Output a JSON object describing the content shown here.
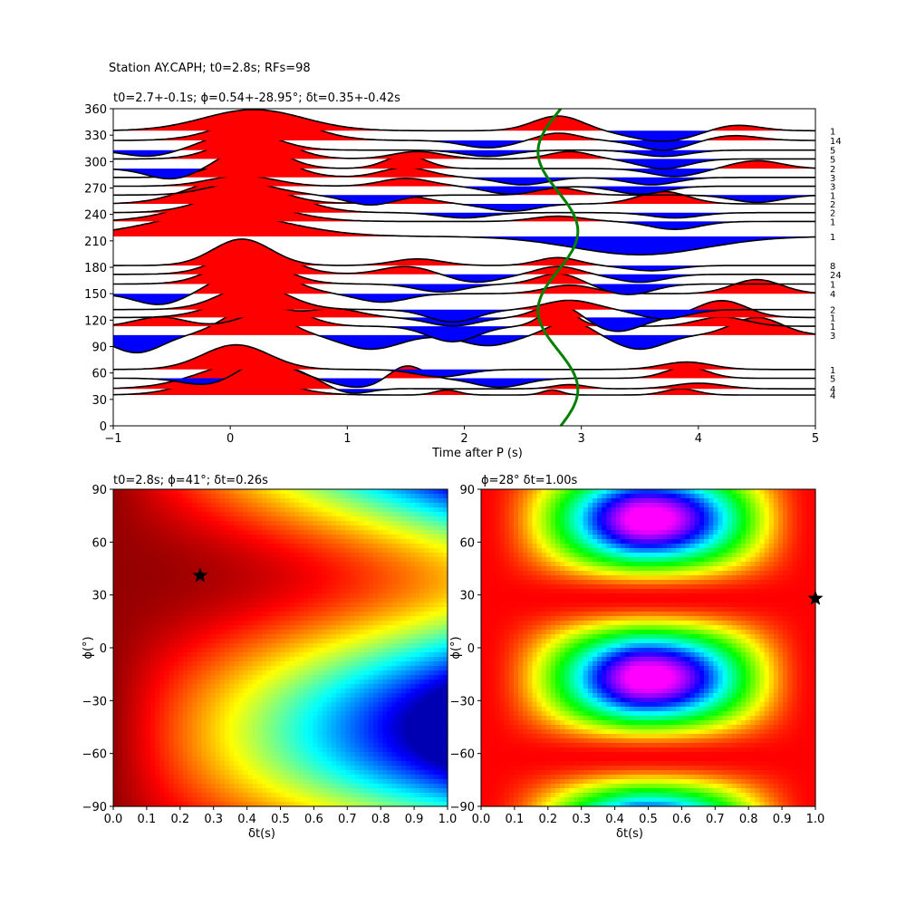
{
  "figure_title": "Station AY.CAPH; t0=2.8s; RFs=98",
  "chart_data": [
    {
      "type": "line",
      "title": "t0=2.7+-0.1s; ϕ=0.54+-28.95°; δt=0.35+-0.42s",
      "xlabel": "Time after P (s)",
      "ylabel": "",
      "xlim": [
        -1,
        5
      ],
      "ylim": [
        0,
        360
      ],
      "x_ticks": [
        "−1",
        "0",
        "1",
        "2",
        "3",
        "4",
        "5"
      ],
      "y_ticks": [
        "0",
        "30",
        "60",
        "90",
        "120",
        "150",
        "180",
        "210",
        "240",
        "270",
        "300",
        "330",
        "360"
      ],
      "positive_fill_color": "#ff0000",
      "negative_fill_color": "#0000ff",
      "curve_color": "#008000",
      "traces": [
        {
          "baz": 35,
          "count": "4",
          "amp": 28,
          "g": [
            [
              0.05,
              0.9,
              0.5
            ],
            [
              1.85,
              0.2,
              0.15
            ],
            [
              2.75,
              0.2,
              0.12
            ],
            [
              3.85,
              0.25,
              0.2
            ]
          ]
        },
        {
          "baz": 42,
          "count": "4",
          "amp": 32,
          "g": [
            [
              0.2,
              1.0,
              0.6
            ],
            [
              1.0,
              -0.3,
              0.25
            ],
            [
              2.9,
              0.15,
              0.2
            ],
            [
              4.0,
              0.2,
              0.3
            ]
          ]
        },
        {
          "baz": 54,
          "count": "5",
          "amp": 26,
          "g": [
            [
              -0.2,
              -0.3,
              0.3
            ],
            [
              0.3,
              0.8,
              0.3
            ],
            [
              1.1,
              -0.4,
              0.3
            ],
            [
              1.5,
              0.6,
              0.2
            ],
            [
              2.3,
              -0.4,
              0.3
            ],
            [
              3.9,
              0.5,
              0.25
            ]
          ]
        },
        {
          "baz": 64,
          "count": "1",
          "amp": 28,
          "g": [
            [
              0.05,
              1.0,
              0.4
            ],
            [
              1.8,
              -0.3,
              0.3
            ],
            [
              3.9,
              0.3,
              0.3
            ]
          ]
        },
        {
          "baz": 103,
          "count": "3",
          "amp": 40,
          "g": [
            [
              -0.8,
              -0.5,
              0.3
            ],
            [
              0.2,
              0.8,
              0.35
            ],
            [
              1.2,
              -0.4,
              0.35
            ],
            [
              2.2,
              -0.3,
              0.3
            ],
            [
              2.9,
              0.4,
              0.25
            ],
            [
              3.5,
              -0.4,
              0.3
            ],
            [
              4.5,
              0.5,
              0.3
            ]
          ]
        },
        {
          "baz": 113,
          "count": "1",
          "amp": 35,
          "g": [
            [
              -0.6,
              0.3,
              0.3
            ],
            [
              0.4,
              0.6,
              0.35
            ],
            [
              1.9,
              -0.5,
              0.3
            ],
            [
              2.8,
              0.6,
              0.2
            ],
            [
              4.2,
              0.3,
              0.3
            ]
          ]
        },
        {
          "baz": 123,
          "count": "1",
          "amp": 32,
          "g": [
            [
              0.1,
              0.6,
              0.4
            ],
            [
              0.9,
              0.3,
              0.3
            ],
            [
              1.9,
              -0.3,
              0.3
            ],
            [
              2.8,
              0.5,
              0.25
            ],
            [
              3.3,
              -0.5,
              0.3
            ],
            [
              4.2,
              0.6,
              0.3
            ]
          ]
        },
        {
          "baz": 132,
          "count": "2",
          "amp": 35,
          "g": [
            [
              0.2,
              0.8,
              0.4
            ],
            [
              1.9,
              -0.4,
              0.3
            ],
            [
              2.9,
              0.3,
              0.3
            ],
            [
              3.7,
              -0.3,
              0.3
            ]
          ]
        },
        {
          "baz": 150,
          "count": "4",
          "amp": 32,
          "g": [
            [
              -0.6,
              -0.4,
              0.3
            ],
            [
              0.2,
              1.0,
              0.4
            ],
            [
              1.3,
              -0.3,
              0.3
            ],
            [
              2.9,
              0.3,
              0.3
            ],
            [
              4.5,
              0.5,
              0.3
            ]
          ]
        },
        {
          "baz": 161,
          "count": "1",
          "amp": 30,
          "g": [
            [
              0.15,
              1.0,
              0.4
            ],
            [
              1.8,
              -0.3,
              0.3
            ],
            [
              2.8,
              0.4,
              0.25
            ],
            [
              3.4,
              -0.4,
              0.3
            ]
          ]
        },
        {
          "baz": 172,
          "count": "24",
          "amp": 30,
          "g": [
            [
              0.2,
              1.0,
              0.4
            ],
            [
              1.5,
              0.3,
              0.3
            ],
            [
              2.1,
              -0.3,
              0.3
            ],
            [
              2.8,
              0.3,
              0.25
            ],
            [
              3.5,
              -0.3,
              0.3
            ]
          ]
        },
        {
          "baz": 182,
          "count": "8",
          "amp": 30,
          "g": [
            [
              0.1,
              1.0,
              0.35
            ],
            [
              1.6,
              0.25,
              0.3
            ],
            [
              2.8,
              0.3,
              0.25
            ],
            [
              3.6,
              -0.2,
              0.3
            ]
          ]
        },
        {
          "baz": 215,
          "count": "1",
          "amp": 26,
          "g": [
            [
              -0.1,
              1.0,
              0.8
            ],
            [
              3.5,
              -0.8,
              0.8
            ]
          ]
        },
        {
          "baz": 232,
          "count": "1",
          "amp": 30,
          "g": [
            [
              0.0,
              0.8,
              0.6
            ],
            [
              2.8,
              0.2,
              0.3
            ],
            [
              3.8,
              -0.3,
              0.3
            ]
          ]
        },
        {
          "baz": 242,
          "count": "2",
          "amp": 30,
          "g": [
            [
              0.2,
              1.0,
              0.5
            ],
            [
              2.0,
              -0.2,
              0.3
            ],
            [
              3.8,
              -0.2,
              0.3
            ]
          ]
        },
        {
          "baz": 252,
          "count": "2",
          "amp": 28,
          "g": [
            [
              0.0,
              1.0,
              0.5
            ],
            [
              1.5,
              0.3,
              0.3
            ],
            [
              2.4,
              -0.3,
              0.3
            ],
            [
              3.7,
              0.5,
              0.3
            ]
          ]
        },
        {
          "baz": 262,
          "count": "1",
          "amp": 28,
          "g": [
            [
              0.1,
              0.5,
              0.4
            ],
            [
              1.2,
              -0.4,
              0.3
            ],
            [
              2.8,
              0.3,
              0.25
            ],
            [
              4.5,
              -0.3,
              0.3
            ]
          ]
        },
        {
          "baz": 272,
          "count": "3",
          "amp": 30,
          "g": [
            [
              0.1,
              0.4,
              0.4
            ],
            [
              1.5,
              0.3,
              0.3
            ],
            [
              2.4,
              -0.3,
              0.3
            ],
            [
              3.5,
              -0.3,
              0.3
            ]
          ]
        },
        {
          "baz": 282,
          "count": "3",
          "amp": 28,
          "g": [
            [
              0.2,
              1.0,
              0.4
            ],
            [
              1.5,
              0.4,
              0.3
            ],
            [
              2.5,
              -0.3,
              0.3
            ],
            [
              3.6,
              -0.3,
              0.3
            ]
          ]
        },
        {
          "baz": 292,
          "count": "2",
          "amp": 30,
          "g": [
            [
              -0.5,
              -0.4,
              0.3
            ],
            [
              0.2,
              0.9,
              0.35
            ],
            [
              1.5,
              0.5,
              0.25
            ],
            [
              3.8,
              -0.3,
              0.3
            ],
            [
              4.5,
              0.3,
              0.3
            ]
          ]
        },
        {
          "baz": 303,
          "count": "5",
          "amp": 28,
          "g": [
            [
              0.2,
              1.0,
              0.4
            ],
            [
              1.6,
              0.3,
              0.3
            ],
            [
              2.9,
              0.3,
              0.25
            ],
            [
              3.7,
              -0.4,
              0.3
            ]
          ]
        },
        {
          "baz": 313,
          "count": "5",
          "amp": 24,
          "g": [
            [
              -0.7,
              -0.3,
              0.3
            ],
            [
              0.1,
              0.9,
              0.4
            ],
            [
              2.2,
              -0.3,
              0.3
            ],
            [
              3.7,
              -0.3,
              0.3
            ]
          ]
        },
        {
          "baz": 324,
          "count": "14",
          "amp": 28,
          "g": [
            [
              0.3,
              1.0,
              0.5
            ],
            [
              2.2,
              -0.3,
              0.3
            ],
            [
              2.8,
              0.3,
              0.25
            ],
            [
              3.7,
              -0.4,
              0.3
            ],
            [
              4.3,
              0.2,
              0.3
            ]
          ]
        },
        {
          "baz": 335,
          "count": "1",
          "amp": 24,
          "g": [
            [
              0.2,
              1.0,
              0.6
            ],
            [
              2.8,
              0.7,
              0.3
            ],
            [
              3.7,
              -0.5,
              0.4
            ],
            [
              4.3,
              0.3,
              0.3
            ]
          ]
        }
      ],
      "green_curve": {
        "center_time": 2.8,
        "amplitude": 0.17,
        "period_deg": 180,
        "phase_deg": 41
      }
    },
    {
      "type": "heatmap",
      "title": "t0=2.8s; ϕ=41°; δt=0.26s",
      "xlabel": "δt(s)",
      "ylabel": "ϕ(°)",
      "xlim": [
        0.0,
        1.0
      ],
      "ylim": [
        -90,
        90
      ],
      "x_ticks": [
        "0.0",
        "0.1",
        "0.2",
        "0.3",
        "0.4",
        "0.5",
        "0.6",
        "0.7",
        "0.8",
        "0.9",
        "1.0"
      ],
      "y_ticks": [
        "−90",
        "−60",
        "−30",
        "0",
        "30",
        "60",
        "90"
      ],
      "colormap": "jet",
      "best": {
        "dt": 0.26,
        "phi": 41
      }
    },
    {
      "type": "heatmap",
      "title": "ϕ=28° δt=1.00s",
      "xlabel": "δt(s)",
      "ylabel": "ϕ(°)",
      "xlim": [
        0.0,
        1.0
      ],
      "ylim": [
        -90,
        90
      ],
      "x_ticks": [
        "0.0",
        "0.1",
        "0.2",
        "0.3",
        "0.4",
        "0.5",
        "0.6",
        "0.7",
        "0.8",
        "0.9",
        "1.0"
      ],
      "y_ticks": [
        "−90",
        "−60",
        "−30",
        "0",
        "30",
        "60",
        "90"
      ],
      "colormap": "hsv",
      "best": {
        "dt": 1.0,
        "phi": 28
      }
    }
  ]
}
